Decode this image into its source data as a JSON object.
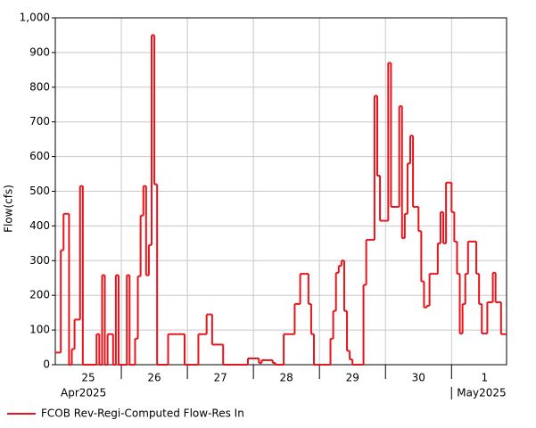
{
  "chart_data": {
    "type": "step",
    "y_label": "Flow(cfs)",
    "xlim": [
      0,
      164
    ],
    "ylim": [
      0,
      1000
    ],
    "yticks": [
      0,
      100,
      200,
      300,
      400,
      500,
      600,
      700,
      800,
      900,
      {
        "value": 1000,
        "label": "1,000"
      }
    ],
    "xticks": [
      24,
      48,
      72,
      96,
      120,
      144
    ],
    "day_labels": [
      {
        "value": 12,
        "label": "25"
      },
      {
        "value": 36,
        "label": "26"
      },
      {
        "value": 60,
        "label": "27"
      },
      {
        "value": 84,
        "label": "28"
      },
      {
        "value": 108,
        "label": "29"
      },
      {
        "value": 132,
        "label": "30"
      },
      {
        "value": 156,
        "label": "1"
      }
    ],
    "month_labels": [
      {
        "value": 0,
        "label": "Apr2025"
      },
      {
        "value": 144,
        "label": "May2025"
      }
    ],
    "grid": true,
    "legend": "bottom-left",
    "series": [
      {
        "name": "FCOB Rev-Regi-Computed Flow-Res In",
        "color": "#e8141c",
        "values": [
          35,
          35,
          330,
          435,
          435,
          0,
          45,
          130,
          130,
          515,
          0,
          0,
          0,
          0,
          0,
          88,
          0,
          258,
          0,
          88,
          88,
          0,
          258,
          0,
          0,
          0,
          258,
          0,
          0,
          75,
          255,
          430,
          515,
          258,
          345,
          950,
          520,
          0,
          0,
          0,
          0,
          88,
          88,
          88,
          88,
          88,
          88,
          0,
          0,
          0,
          0,
          0,
          88,
          88,
          88,
          145,
          145,
          58,
          58,
          58,
          58,
          0,
          0,
          0,
          0,
          0,
          0,
          0,
          0,
          0,
          18,
          18,
          18,
          18,
          5,
          13,
          13,
          13,
          13,
          5,
          0,
          0,
          0,
          88,
          88,
          88,
          88,
          175,
          175,
          262,
          262,
          262,
          175,
          88,
          0,
          0,
          0,
          0,
          0,
          0,
          75,
          155,
          265,
          285,
          300,
          155,
          40,
          15,
          0,
          0,
          0,
          0,
          230,
          360,
          360,
          360,
          775,
          545,
          415,
          415,
          415,
          870,
          455,
          455,
          455,
          745,
          365,
          435,
          580,
          660,
          455,
          455,
          385,
          240,
          165,
          170,
          262,
          262,
          262,
          350,
          440,
          350,
          525,
          525,
          440,
          355,
          262,
          90,
          175,
          262,
          355,
          355,
          355,
          262,
          175,
          90,
          90,
          180,
          180,
          265,
          180,
          180,
          88,
          88
        ]
      }
    ]
  }
}
